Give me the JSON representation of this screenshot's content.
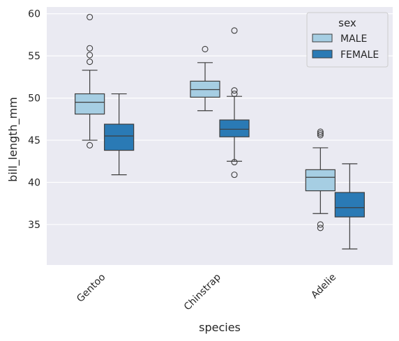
{
  "chart_data": {
    "type": "boxplot",
    "title": "",
    "xlabel": "species",
    "ylabel": "bill_length_mm",
    "ylim": [
      30.2,
      60.8
    ],
    "yticks": [
      35,
      40,
      45,
      50,
      55,
      60
    ],
    "grid": true,
    "categories": [
      "Gentoo",
      "Chinstrap",
      "Adelie"
    ],
    "legend": {
      "title": "sex",
      "placement": "top-right"
    },
    "series": [
      {
        "name": "MALE",
        "color": "#a6cee3",
        "boxes": [
          {
            "q1": 48.1,
            "median": 49.5,
            "q3": 50.5,
            "whisker_low": 45.0,
            "whisker_high": 53.3,
            "outliers": [
              44.4,
              54.3,
              55.1,
              55.9,
              59.6
            ]
          },
          {
            "q1": 50.1,
            "median": 51.0,
            "q3": 52.0,
            "whisker_low": 48.5,
            "whisker_high": 54.2,
            "outliers": [
              55.8
            ]
          },
          {
            "q1": 39.0,
            "median": 40.6,
            "q3": 41.5,
            "whisker_low": 36.3,
            "whisker_high": 44.1,
            "outliers": [
              34.6,
              35.0,
              45.6,
              45.8,
              46.0
            ]
          }
        ]
      },
      {
        "name": "FEMALE",
        "color": "#2a7ab5",
        "boxes": [
          {
            "q1": 43.8,
            "median": 45.5,
            "q3": 46.9,
            "whisker_low": 40.9,
            "whisker_high": 50.5,
            "outliers": []
          },
          {
            "q1": 45.4,
            "median": 46.3,
            "q3": 47.4,
            "whisker_low": 42.5,
            "whisker_high": 50.2,
            "outliers": [
              40.9,
              42.4,
              50.5,
              50.9,
              58.0
            ]
          },
          {
            "q1": 35.9,
            "median": 37.0,
            "q3": 38.8,
            "whisker_low": 32.1,
            "whisker_high": 42.2,
            "outliers": []
          }
        ]
      }
    ]
  },
  "colors": {
    "plot_background": "#eaeaf2",
    "grid": "#ffffff",
    "line": "#3d3d3d"
  }
}
